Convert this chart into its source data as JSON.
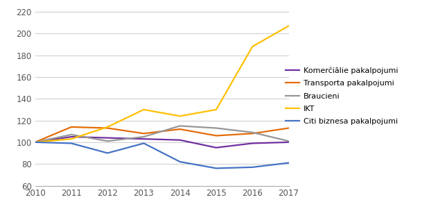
{
  "years": [
    2010,
    2011,
    2012,
    2013,
    2014,
    2015,
    2016,
    2017
  ],
  "series": [
    {
      "label": "Komerčiālie pakalpojumi",
      "color": "#7030a0",
      "values": [
        100,
        105,
        104,
        103,
        102,
        95,
        99,
        100
      ]
    },
    {
      "label": "Transporta pakalpojumi",
      "color": "#e36c09",
      "values": [
        100,
        114,
        113,
        108,
        112,
        106,
        108,
        113
      ]
    },
    {
      "label": "Braucieni",
      "color": "#969696",
      "values": [
        100,
        107,
        101,
        105,
        115,
        113,
        109,
        101
      ]
    },
    {
      "label": "IKT",
      "color": "#ffc000",
      "values": [
        100,
        103,
        114,
        130,
        124,
        130,
        188,
        207
      ]
    },
    {
      "label": "Citi biznesa pakalpojumi",
      "color": "#4472c4",
      "values": [
        100,
        99,
        90,
        99,
        82,
        76,
        77,
        81
      ]
    }
  ],
  "ylim": [
    60,
    225
  ],
  "yticks": [
    60,
    80,
    100,
    120,
    140,
    160,
    180,
    200,
    220
  ],
  "linewidth": 1.6,
  "fig_width": 6.32,
  "fig_height": 3.04,
  "dpi": 100,
  "bg_color": "#ffffff"
}
